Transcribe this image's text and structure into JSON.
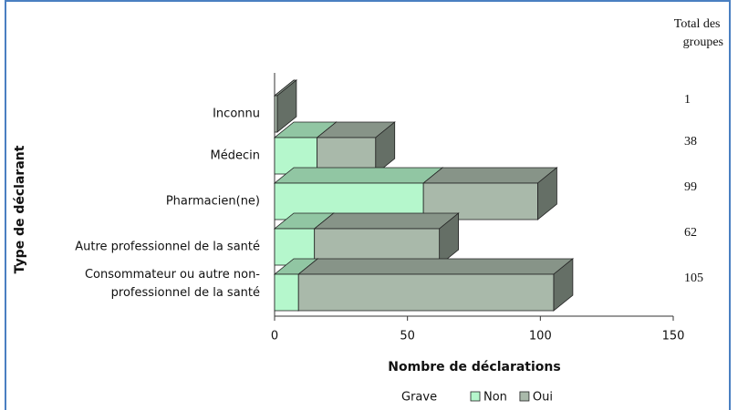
{
  "chart_data": {
    "type": "bar3d",
    "categories": [
      "Inconnu",
      "Médecin",
      "Pharmacien(ne)",
      "Autre professionnel de la santé",
      "Consommateur ou autre non-professionnel de la santé"
    ],
    "series": [
      {
        "name": "Non",
        "color": "#b5f7cc",
        "values": [
          0,
          16,
          56,
          15,
          9
        ]
      },
      {
        "name": "Oui",
        "color": "#a9b9aa",
        "values": [
          1,
          22,
          43,
          47,
          96
        ]
      }
    ],
    "totals_title": "Total des groupes",
    "totals": [
      1,
      38,
      99,
      62,
      105
    ],
    "xlabel": "Nombre de déclarations",
    "ylabel": "Type de déclarant",
    "legend_title": "Grave",
    "xlim": [
      0,
      150
    ],
    "xticks": [
      0,
      50,
      100,
      150
    ]
  }
}
